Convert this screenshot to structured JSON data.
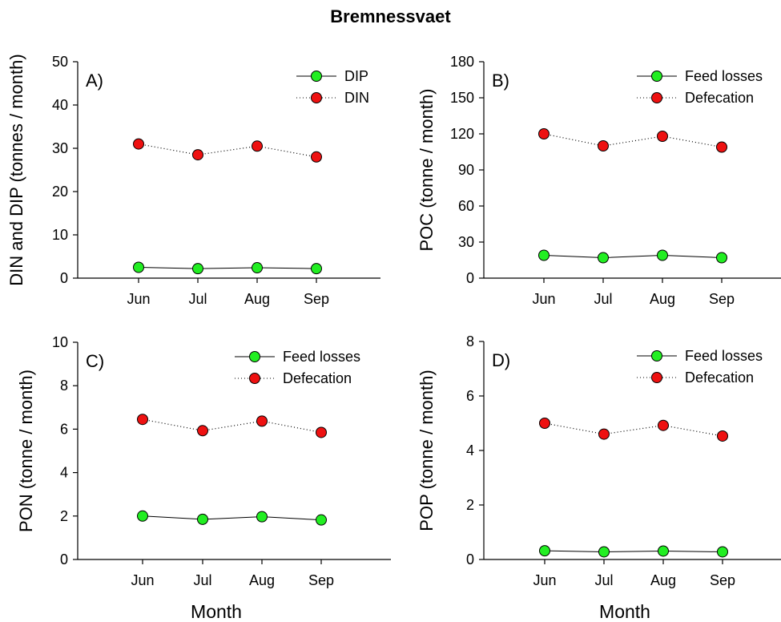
{
  "title": "Bremnessvaet",
  "colors": {
    "green": "#22ee22",
    "red": "#ee1111",
    "line": "#000000"
  },
  "chart_data": [
    {
      "type": "line",
      "panel_label": "A)",
      "ylabel": "DIN and DIP (tonnes / month)",
      "xlabel": "",
      "categories": [
        "Jun",
        "Jul",
        "Aug",
        "Sep"
      ],
      "ylim": [
        0,
        50
      ],
      "yticks": [
        0,
        10,
        20,
        30,
        40,
        50
      ],
      "legend_position": "top-right",
      "series": [
        {
          "name": "DIP",
          "color": "#22ee22",
          "style": "solid",
          "values": [
            2.5,
            2.2,
            2.4,
            2.2
          ]
        },
        {
          "name": "DIN",
          "color": "#ee1111",
          "style": "dotted",
          "values": [
            31.0,
            28.5,
            30.5,
            28.0
          ]
        }
      ]
    },
    {
      "type": "line",
      "panel_label": "B)",
      "ylabel": "POC (tonne / month)",
      "xlabel": "",
      "categories": [
        "Jun",
        "Jul",
        "Aug",
        "Sep"
      ],
      "ylim": [
        0,
        180
      ],
      "yticks": [
        0,
        30,
        60,
        90,
        120,
        150,
        180
      ],
      "legend_position": "top-right",
      "series": [
        {
          "name": "Feed losses",
          "color": "#22ee22",
          "style": "solid",
          "values": [
            19,
            17,
            19,
            17
          ]
        },
        {
          "name": "Defecation",
          "color": "#ee1111",
          "style": "dotted",
          "values": [
            120,
            110,
            118,
            109
          ]
        }
      ]
    },
    {
      "type": "line",
      "panel_label": "C)",
      "ylabel": "PON (tonne / month)",
      "xlabel": "Month",
      "categories": [
        "Jun",
        "Jul",
        "Aug",
        "Sep"
      ],
      "ylim": [
        0,
        10
      ],
      "yticks": [
        0,
        2,
        4,
        6,
        8,
        10
      ],
      "legend_position": "top-right",
      "series": [
        {
          "name": "Feed losses",
          "color": "#22ee22",
          "style": "solid",
          "values": [
            2.0,
            1.85,
            1.97,
            1.82
          ]
        },
        {
          "name": "Defecation",
          "color": "#ee1111",
          "style": "dotted",
          "values": [
            6.45,
            5.93,
            6.37,
            5.85
          ]
        }
      ]
    },
    {
      "type": "line",
      "panel_label": "D)",
      "ylabel": "POP (tonne / month)",
      "xlabel": "Month",
      "categories": [
        "Jun",
        "Jul",
        "Aug",
        "Sep"
      ],
      "ylim": [
        0,
        8
      ],
      "yticks": [
        0,
        2,
        4,
        6,
        8
      ],
      "legend_position": "top-right",
      "series": [
        {
          "name": "Feed losses",
          "color": "#22ee22",
          "style": "solid",
          "values": [
            0.32,
            0.28,
            0.31,
            0.28
          ]
        },
        {
          "name": "Defecation",
          "color": "#ee1111",
          "style": "dotted",
          "values": [
            5.0,
            4.6,
            4.92,
            4.53
          ]
        }
      ]
    }
  ]
}
